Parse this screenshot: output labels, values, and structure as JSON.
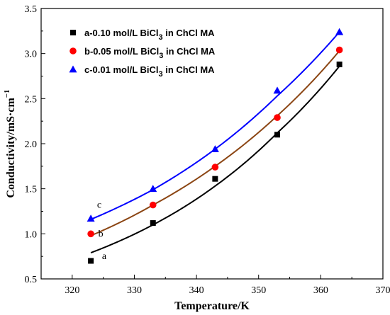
{
  "chart_data": {
    "type": "scatter",
    "xlabel": "Temperature/K",
    "ylabel": "Conductivity/mS·cm",
    "ylabel_superscript": "−1",
    "xlim": [
      315,
      370
    ],
    "ylim": [
      0.5,
      3.5
    ],
    "xticks": [
      320,
      330,
      340,
      350,
      360,
      370
    ],
    "yticks": [
      0.5,
      1.0,
      1.5,
      2.0,
      2.5,
      3.0,
      3.5
    ],
    "xtick_labels": [
      "320",
      "330",
      "340",
      "350",
      "360",
      "370"
    ],
    "ytick_labels": [
      "0.5",
      "1.0",
      "1.5",
      "2.0",
      "2.5",
      "3.0",
      "3.5"
    ],
    "grid": false,
    "legend_position": "top-left",
    "x": [
      323,
      333,
      343,
      353,
      363
    ],
    "series": [
      {
        "name": "a-0.10 mol/L BiCl3 in ChCl MA",
        "legend_main": "a-0.10 mol/L BiCl",
        "legend_sub": "3",
        "legend_tail": " in ChCl MA",
        "marker": "square",
        "color": "#000000",
        "curve_color": "#000000",
        "curve_label": "a",
        "values": [
          0.7,
          1.12,
          1.61,
          2.1,
          2.88
        ],
        "fit_values": [
          0.79,
          1.1,
          1.53,
          2.12,
          2.86
        ]
      },
      {
        "name": "b-0.05 mol/L BiCl3 in ChCl MA",
        "legend_main": "b-0.05 mol/L BiCl",
        "legend_sub": "3",
        "legend_tail": " in ChCl MA",
        "marker": "circle",
        "color": "#ff0000",
        "curve_color": "#8b4513",
        "curve_label": "b",
        "values": [
          1.0,
          1.32,
          1.74,
          2.29,
          3.04
        ],
        "fit_values": [
          0.98,
          1.32,
          1.75,
          2.31,
          3.03
        ]
      },
      {
        "name": "c-0.01 mol/L BiCl3 in ChCl MA",
        "legend_main": "c-0.01 mol/L BiCl",
        "legend_sub": "3",
        "legend_tail": " in ChCl MA",
        "marker": "triangle",
        "color": "#0000ff",
        "curve_color": "#0000ff",
        "curve_label": "c",
        "values": [
          1.17,
          1.5,
          1.94,
          2.59,
          3.24
        ],
        "fit_values": [
          1.16,
          1.49,
          1.94,
          2.53,
          3.24
        ]
      }
    ]
  }
}
